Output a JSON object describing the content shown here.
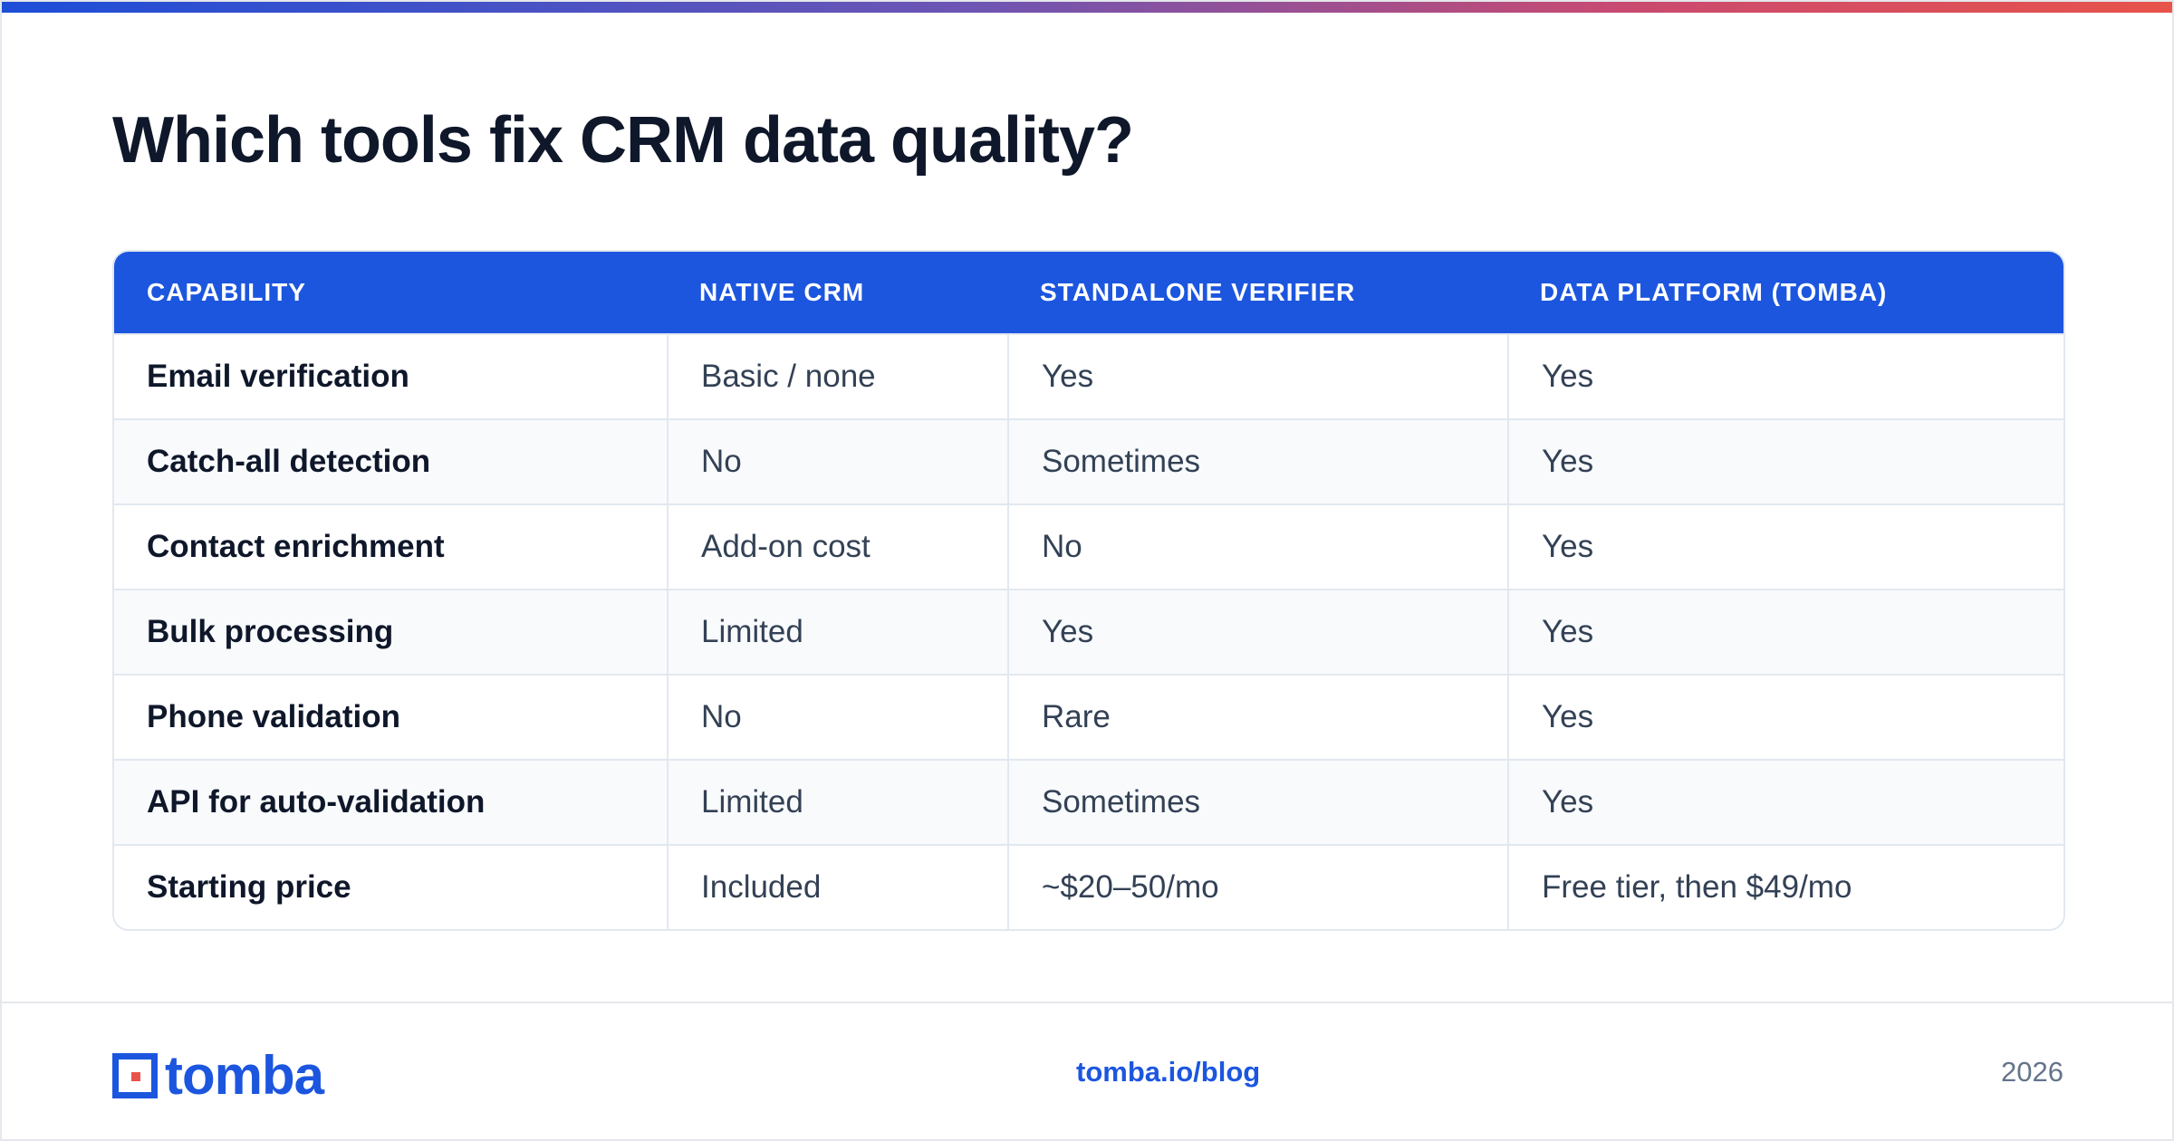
{
  "page": {
    "title": "Which tools fix CRM data quality?"
  },
  "table": {
    "headers": [
      "CAPABILITY",
      "NATIVE CRM",
      "STANDALONE VERIFIER",
      "DATA PLATFORM (TOMBA)"
    ],
    "rows": [
      [
        "Email verification",
        "Basic / none",
        "Yes",
        "Yes"
      ],
      [
        "Catch-all detection",
        "No",
        "Sometimes",
        "Yes"
      ],
      [
        "Contact enrichment",
        "Add-on cost",
        "No",
        "Yes"
      ],
      [
        "Bulk processing",
        "Limited",
        "Yes",
        "Yes"
      ],
      [
        "Phone validation",
        "No",
        "Rare",
        "Yes"
      ],
      [
        "API for auto-validation",
        "Limited",
        "Sometimes",
        "Yes"
      ],
      [
        "Starting price",
        "Included",
        "~$20–50/mo",
        "Free tier, then $49/mo"
      ]
    ]
  },
  "footer": {
    "logo_text": "tomba",
    "link": "tomba.io/blog",
    "year": "2026"
  },
  "colors": {
    "accent": "#1c56df",
    "title": "#0f172a",
    "body_text": "#334155",
    "brand_red": "#e8534a",
    "alt_row": "#f8fafc",
    "border": "#e2e8f0"
  },
  "icons": {
    "logo": "tomba-logo-mark"
  }
}
